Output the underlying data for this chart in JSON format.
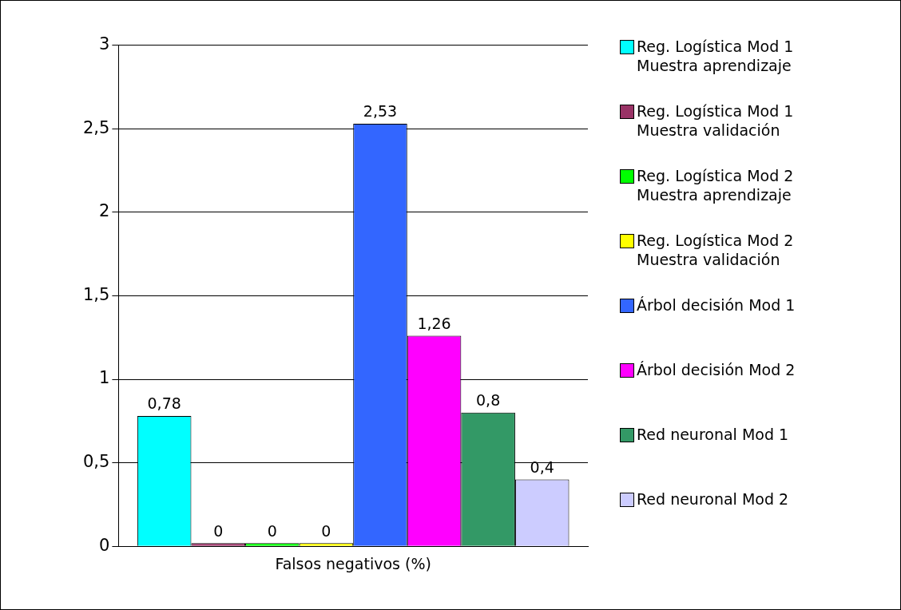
{
  "chart_data": {
    "type": "bar",
    "categories": [
      "Falsos negativos (%)"
    ],
    "series": [
      {
        "name": "Reg. Logística Mod 1 Muestra aprendizaje",
        "color": "#00ffff",
        "values": [
          0.78
        ],
        "value_labels": [
          "0,78"
        ]
      },
      {
        "name": "Reg. Logística Mod 1 Muestra validación",
        "color": "#993366",
        "values": [
          0
        ],
        "value_labels": [
          "0"
        ]
      },
      {
        "name": "Reg. Logística Mod 2 Muestra aprendizaje",
        "color": "#00ff00",
        "values": [
          0
        ],
        "value_labels": [
          "0"
        ]
      },
      {
        "name": "Reg. Logística Mod 2 Muestra validación",
        "color": "#ffff00",
        "values": [
          0
        ],
        "value_labels": [
          "0"
        ]
      },
      {
        "name": "Árbol decisión Mod 1",
        "color": "#3366ff",
        "values": [
          2.53
        ],
        "value_labels": [
          "2,53"
        ]
      },
      {
        "name": "Árbol decisión Mod 2",
        "color": "#ff00ff",
        "values": [
          1.26
        ],
        "value_labels": [
          "1,26"
        ]
      },
      {
        "name": "Red neuronal Mod 1",
        "color": "#339966",
        "values": [
          0.8
        ],
        "value_labels": [
          "0,8"
        ]
      },
      {
        "name": "Red neuronal Mod 2",
        "color": "#ccccff",
        "values": [
          0.4
        ],
        "value_labels": [
          "0,4"
        ]
      }
    ],
    "ylim": [
      0,
      3
    ],
    "yticks": [
      0,
      {
        "value": 0.5,
        "label": "0,5"
      },
      1,
      {
        "value": 1.5,
        "label": "1,5"
      },
      2,
      {
        "value": 2.5,
        "label": "2,5"
      },
      3
    ],
    "grid": "y",
    "legend": "right"
  }
}
